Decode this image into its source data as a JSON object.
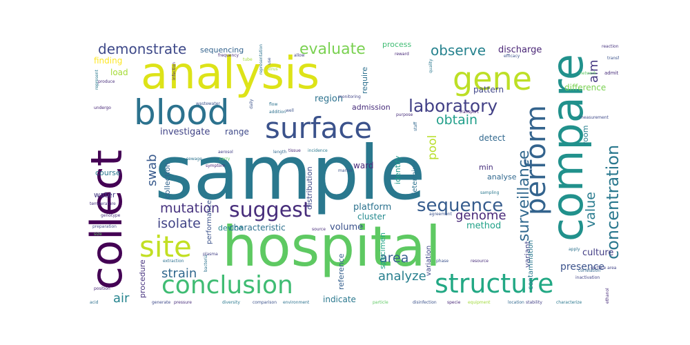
{
  "chart_data": {
    "type": "wordcloud",
    "title": "",
    "background": "#ffffff",
    "colormap": "viridis",
    "words": [
      {
        "text": "sample",
        "weight": 100,
        "color": "#2a788e"
      },
      {
        "text": "hospital",
        "weight": 82,
        "color": "#5ec962"
      },
      {
        "text": "analysis",
        "weight": 75,
        "color": "#dde318"
      },
      {
        "text": "collect",
        "weight": 70,
        "color": "#440154"
      },
      {
        "text": "compare",
        "weight": 66,
        "color": "#21918c"
      },
      {
        "text": "blood",
        "weight": 55,
        "color": "#2c728e"
      },
      {
        "text": "gene",
        "weight": 52,
        "color": "#bddf26"
      },
      {
        "text": "surface",
        "weight": 48,
        "color": "#3b528b"
      },
      {
        "text": "structure",
        "weight": 46,
        "color": "#22a884"
      },
      {
        "text": "conclusion",
        "weight": 45,
        "color": "#3fbc73"
      },
      {
        "text": "site",
        "weight": 44,
        "color": "#c2df23"
      },
      {
        "text": "perform",
        "weight": 42,
        "color": "#33638d"
      },
      {
        "text": "suggest",
        "weight": 38,
        "color": "#472d7b"
      },
      {
        "text": "sequence",
        "weight": 34,
        "color": "#365c8d"
      },
      {
        "text": "laboratory",
        "weight": 33,
        "color": "#424086"
      },
      {
        "text": "concentration",
        "weight": 32,
        "color": "#2a788e"
      },
      {
        "text": "surveillance",
        "weight": 30,
        "color": "#31688e"
      },
      {
        "text": "evaluate",
        "weight": 28,
        "color": "#7ad151"
      },
      {
        "text": "observe",
        "weight": 28,
        "color": "#26828e"
      },
      {
        "text": "demonstrate",
        "weight": 26,
        "color": "#3e4989"
      },
      {
        "text": "mutation",
        "weight": 26,
        "color": "#46327e"
      },
      {
        "text": "isolate",
        "weight": 26,
        "color": "#414487"
      },
      {
        "text": "obtain",
        "weight": 25,
        "color": "#1f9e89"
      },
      {
        "text": "genome",
        "weight": 24,
        "color": "#482878"
      },
      {
        "text": "value",
        "weight": 24,
        "color": "#297b8e"
      },
      {
        "text": "area",
        "weight": 24,
        "color": "#355f8d"
      },
      {
        "text": "analyze",
        "weight": 24,
        "color": "#277f8e"
      },
      {
        "text": "strain",
        "weight": 24,
        "color": "#31688e"
      },
      {
        "text": "swab",
        "weight": 24,
        "color": "#38598c"
      },
      {
        "text": "aim",
        "weight": 22,
        "color": "#453781"
      },
      {
        "text": "pool",
        "weight": 22,
        "color": "#b8de29"
      },
      {
        "text": "air",
        "weight": 22,
        "color": "#25848e"
      },
      {
        "text": "presence",
        "weight": 20,
        "color": "#3b528b"
      },
      {
        "text": "investigate",
        "weight": 18,
        "color": "#414487"
      },
      {
        "text": "discharge",
        "weight": 17,
        "color": "#482475"
      },
      {
        "text": "region",
        "weight": 17,
        "color": "#2c728e"
      },
      {
        "text": "volume",
        "weight": 17,
        "color": "#3b528b"
      },
      {
        "text": "platform",
        "weight": 17,
        "color": "#2c728e"
      },
      {
        "text": "method",
        "weight": 17,
        "color": "#1fa187"
      },
      {
        "text": "culture",
        "weight": 17,
        "color": "#433e85"
      },
      {
        "text": "finding",
        "weight": 16,
        "color": "#fde725"
      },
      {
        "text": "load",
        "weight": 16,
        "color": "#a5db36"
      },
      {
        "text": "range",
        "weight": 16,
        "color": "#3e4989"
      },
      {
        "text": "detect",
        "weight": 16,
        "color": "#31688e"
      },
      {
        "text": "cluster",
        "weight": 16,
        "color": "#23898e"
      },
      {
        "text": "characteristic",
        "weight": 15,
        "color": "#2d708e"
      },
      {
        "text": "difference",
        "weight": 15,
        "color": "#7ad151"
      },
      {
        "text": "pattern",
        "weight": 15,
        "color": "#404688"
      },
      {
        "text": "sequencing",
        "weight": 15,
        "color": "#33638d"
      },
      {
        "text": "admission",
        "weight": 15,
        "color": "#472c7a"
      },
      {
        "text": "indicate",
        "weight": 15,
        "color": "#2a788e"
      },
      {
        "text": "reference",
        "weight": 15,
        "color": "#355f8d"
      },
      {
        "text": "specimen",
        "weight": 15,
        "color": "#20a486"
      },
      {
        "text": "identify",
        "weight": 15,
        "color": "#1f988b"
      },
      {
        "text": "distribution",
        "weight": 15,
        "color": "#3e4a89"
      },
      {
        "text": "variant",
        "weight": 15,
        "color": "#414487"
      },
      {
        "text": "ward",
        "weight": 14,
        "color": "#482878"
      },
      {
        "text": "room",
        "weight": 14,
        "color": "#277f8e"
      },
      {
        "text": "process",
        "weight": 14,
        "color": "#3fbc73"
      },
      {
        "text": "require",
        "weight": 14,
        "color": "#2d708e"
      },
      {
        "text": "collection",
        "weight": 14,
        "color": "#32648e"
      },
      {
        "text": "performance",
        "weight": 14,
        "color": "#3b528b"
      },
      {
        "text": "course",
        "weight": 14,
        "color": "#2a788e"
      },
      {
        "text": "water",
        "weight": 14,
        "color": "#443a83"
      },
      {
        "text": "device",
        "weight": 14,
        "color": "#25848e"
      },
      {
        "text": "procedure",
        "weight": 14,
        "color": "#46327e"
      },
      {
        "text": "determine",
        "weight": 13,
        "color": "#2c728e"
      },
      {
        "text": "min",
        "weight": 13,
        "color": "#472f7d"
      },
      {
        "text": "analyse",
        "weight": 13,
        "color": "#31688e"
      },
      {
        "text": "contamination",
        "weight": 13,
        "color": "#2a788e"
      },
      {
        "text": "variation",
        "weight": 12,
        "color": "#3f4788"
      },
      {
        "text": "frequency",
        "weight": 8,
        "color": "#472c7a"
      },
      {
        "text": "tube",
        "weight": 7,
        "color": "#a0da39"
      },
      {
        "text": "use",
        "weight": 7,
        "color": "#3b528b"
      },
      {
        "text": "allow",
        "weight": 7,
        "color": "#424086"
      },
      {
        "text": "reward",
        "weight": 7,
        "color": "#482878"
      },
      {
        "text": "efficacy",
        "weight": 7,
        "color": "#3b528b"
      },
      {
        "text": "quality",
        "weight": 7,
        "color": "#2a788e"
      },
      {
        "text": "reaction",
        "weight": 7,
        "color": "#46327e"
      },
      {
        "text": "admit",
        "weight": 8,
        "color": "#472c7a"
      },
      {
        "text": "undergo",
        "weight": 7,
        "color": "#482878"
      },
      {
        "text": "flow",
        "weight": 7,
        "color": "#2c728e"
      },
      {
        "text": "well",
        "weight": 7,
        "color": "#3b528b"
      },
      {
        "text": "addition",
        "weight": 7,
        "color": "#2d708e"
      },
      {
        "text": "monitoring",
        "weight": 7,
        "color": "#414487"
      },
      {
        "text": "staff",
        "weight": 7,
        "color": "#31688e"
      },
      {
        "text": "transport",
        "weight": 7,
        "color": "#482475"
      },
      {
        "text": "temperature",
        "weight": 7,
        "color": "#46327e"
      },
      {
        "text": "sampling",
        "weight": 7,
        "color": "#2a788e"
      },
      {
        "text": "genotype",
        "weight": 7,
        "color": "#472d7b"
      },
      {
        "text": "preparation",
        "weight": 7,
        "color": "#3e4989"
      },
      {
        "text": "bacteria",
        "weight": 7,
        "color": "#2c728e"
      },
      {
        "text": "plasma",
        "weight": 7,
        "color": "#424086"
      },
      {
        "text": "size",
        "weight": 7,
        "color": "#5ec962"
      },
      {
        "text": "phase",
        "weight": 7,
        "color": "#3b528b"
      },
      {
        "text": "resource",
        "weight": 7,
        "color": "#472c7a"
      },
      {
        "text": "correlation",
        "weight": 7,
        "color": "#31688e"
      },
      {
        "text": "inactivation",
        "weight": 7,
        "color": "#414487"
      },
      {
        "text": "position",
        "weight": 7,
        "color": "#482878"
      },
      {
        "text": "acid",
        "weight": 7,
        "color": "#2d708e"
      },
      {
        "text": "generate",
        "weight": 7,
        "color": "#3e4989"
      },
      {
        "text": "pressure",
        "weight": 7,
        "color": "#472d7b"
      },
      {
        "text": "diversity",
        "weight": 7,
        "color": "#2a788e"
      },
      {
        "text": "comparison",
        "weight": 7,
        "color": "#3b528b"
      },
      {
        "text": "environment",
        "weight": 7,
        "color": "#2c728e"
      },
      {
        "text": "particle",
        "weight": 7,
        "color": "#5ec962"
      },
      {
        "text": "disinfection",
        "weight": 7,
        "color": "#3b528b"
      },
      {
        "text": "specie",
        "weight": 7,
        "color": "#482878"
      },
      {
        "text": "equipment",
        "weight": 7,
        "color": "#a0da39"
      },
      {
        "text": "location",
        "weight": 7,
        "color": "#31688e"
      },
      {
        "text": "stability",
        "weight": 7,
        "color": "#424086"
      },
      {
        "text": "characterize",
        "weight": 7,
        "color": "#2a788e"
      },
      {
        "text": "source",
        "weight": 7,
        "color": "#472c7a"
      },
      {
        "text": "agreement",
        "weight": 7,
        "color": "#3b528b"
      },
      {
        "text": "carry",
        "weight": 7,
        "color": "#5ec962"
      },
      {
        "text": "sewage",
        "weight": 7,
        "color": "#2c728e"
      },
      {
        "text": "aerosol",
        "weight": 7,
        "color": "#424086"
      },
      {
        "text": "length",
        "weight": 7,
        "color": "#31688e"
      },
      {
        "text": "tissue",
        "weight": 7,
        "color": "#482878"
      },
      {
        "text": "incidence",
        "weight": 7,
        "color": "#2a788e"
      },
      {
        "text": "marker",
        "weight": 7,
        "color": "#3b528b"
      },
      {
        "text": "purpose",
        "weight": 7,
        "color": "#472c7a"
      },
      {
        "text": "representation",
        "weight": 7,
        "color": "#2c728e"
      },
      {
        "text": "measurement",
        "weight": 7,
        "color": "#3e4989"
      },
      {
        "text": "network",
        "weight": 7,
        "color": "#5ec962"
      },
      {
        "text": "transfer",
        "weight": 7,
        "color": "#3b528b"
      },
      {
        "text": "produce",
        "weight": 7,
        "color": "#472d7b"
      },
      {
        "text": "represent",
        "weight": 7,
        "color": "#2a788e"
      },
      {
        "text": "infection",
        "weight": 7,
        "color": "#482878"
      },
      {
        "text": "daily",
        "weight": 7,
        "color": "#3b528b"
      },
      {
        "text": "virus",
        "weight": 7,
        "color": "#a0da39"
      },
      {
        "text": "apply",
        "weight": 7,
        "color": "#2c728e"
      },
      {
        "text": "surface area",
        "weight": 7,
        "color": "#414487"
      },
      {
        "text": "extraction",
        "weight": 7,
        "color": "#2d708e"
      },
      {
        "text": "symptom",
        "weight": 7,
        "color": "#482475"
      },
      {
        "text": "wastewater",
        "weight": 7,
        "color": "#3b528b"
      },
      {
        "text": "ethanol",
        "weight": 7,
        "color": "#472c7a"
      }
    ]
  }
}
